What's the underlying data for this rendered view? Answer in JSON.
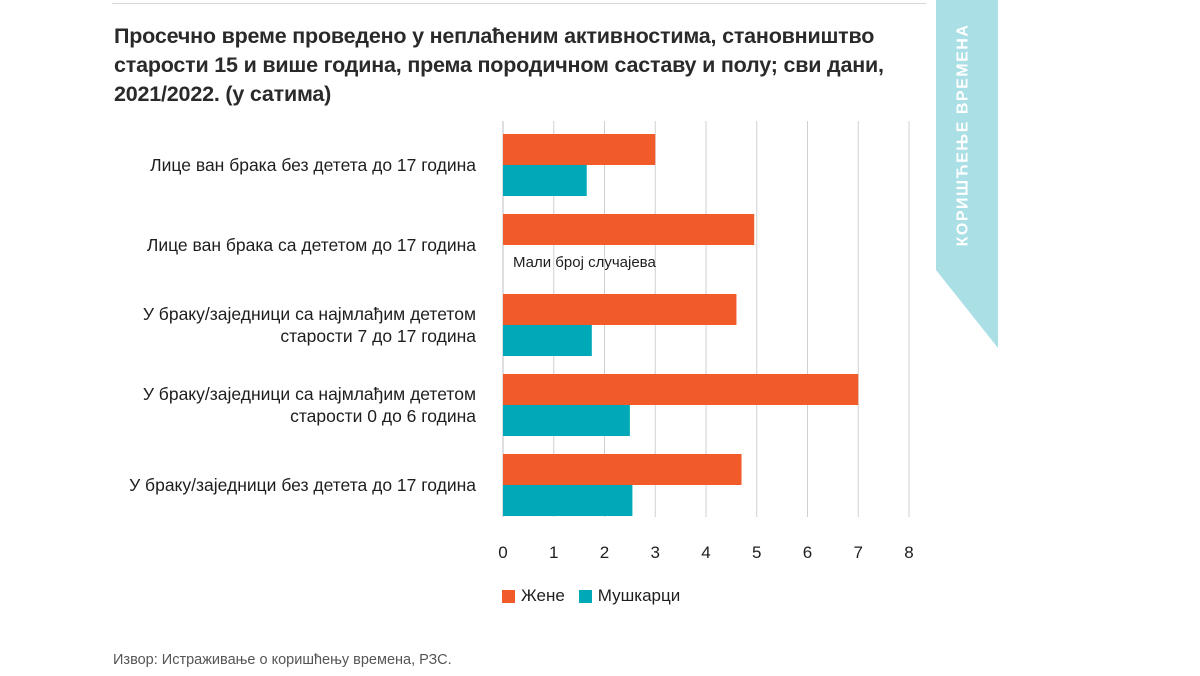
{
  "title": "Просечно време проведено у неплаћеним активностима, становништво старости 15 и више година, према породичном саставу и полу; сви дани, 2021/2022. (у сатима)",
  "side_tab": {
    "label": "КОРИШЋЕЊЕ ВРЕМЕНА",
    "color": "#a9dfe5"
  },
  "source": "Извор: Истраживање о коришћењу времена, РЗС.",
  "chart_data": {
    "type": "bar",
    "orientation": "horizontal",
    "title": "Просечно време проведено у неплаћеним активностима, становништво старости 15 и више година, према породичном саставу и полу; сви дани, 2021/2022. (у сатима)",
    "categories": [
      [
        "Лице ван брака без детета до 17 година"
      ],
      [
        "Лице ван брака са дететом до 17 година"
      ],
      [
        "У браку/заједници са најмлађим дететом",
        "старости 7 до 17 година"
      ],
      [
        "У браку/заједници са најмлађим дететом",
        "старости 0 до 6 година"
      ],
      [
        "У браку/заједници без детета до 17 година"
      ]
    ],
    "series": [
      {
        "name": "Жене",
        "color": "#f15a29",
        "values": [
          3.0,
          4.95,
          4.6,
          7.0,
          4.7
        ]
      },
      {
        "name": "Мушкарци",
        "color": "#00a9b7",
        "values": [
          1.65,
          null,
          1.75,
          2.5,
          2.55
        ]
      }
    ],
    "annotations": [
      {
        "category_index": 1,
        "series": "Мушкарци",
        "text": "Мали број случајева"
      }
    ],
    "xlim": [
      0,
      8
    ],
    "xticks": [
      "0",
      "1",
      "2",
      "3",
      "4",
      "5",
      "6",
      "7",
      "8"
    ],
    "grid": "vertical",
    "legend": "bottom-left"
  }
}
